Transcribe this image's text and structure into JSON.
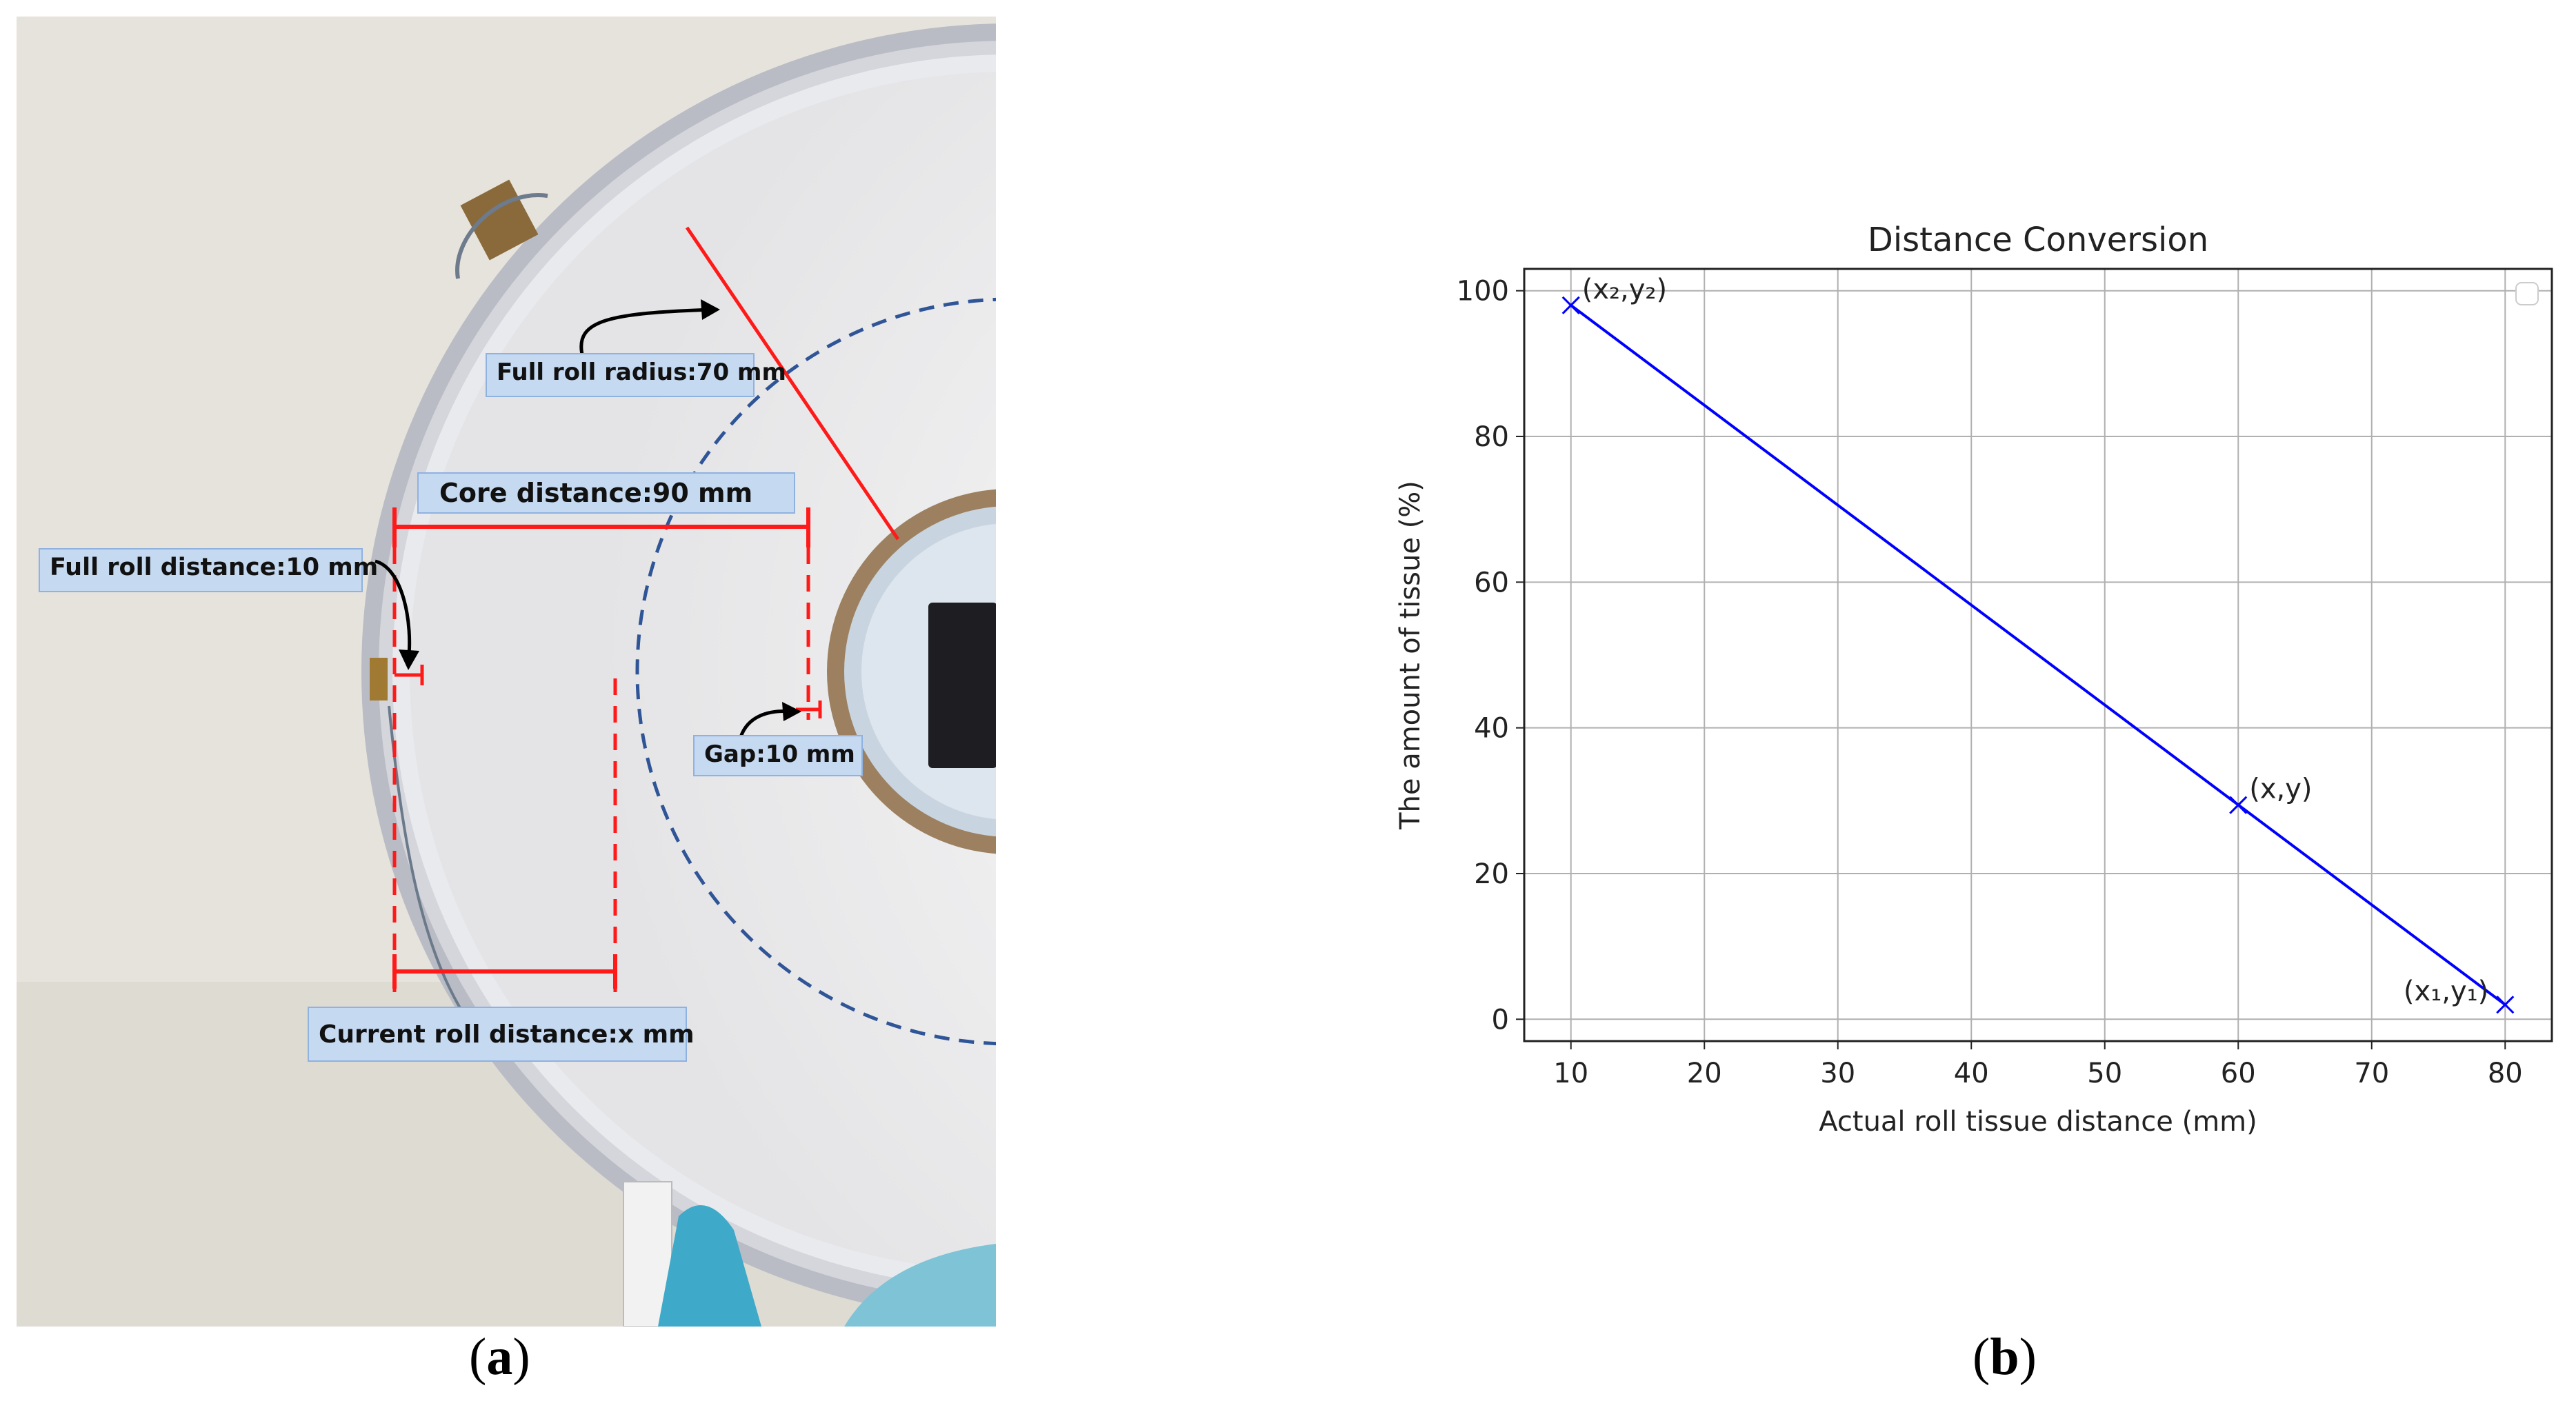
{
  "panel_a": {
    "caption_open": "(",
    "caption_letter": "a",
    "caption_close": ")",
    "labels": {
      "full_roll_radius": "Full roll radius:70 mm",
      "core_distance": "Core distance:90 mm",
      "full_roll_distance": "Full roll distance:10 mm",
      "gap": "Gap:10 mm",
      "current_roll_distance": "Current roll distance:x mm"
    }
  },
  "panel_b": {
    "caption_open": "(",
    "caption_letter": "b",
    "caption_close": ")"
  },
  "chart_data": {
    "type": "line",
    "title": "Distance Conversion",
    "xlabel": "Actual roll tissue distance (mm)",
    "ylabel": "The amount of tissue (%)",
    "xlim": [
      6.5,
      83.5
    ],
    "ylim": [
      -3,
      103
    ],
    "xticks": [
      10,
      20,
      30,
      40,
      50,
      60,
      70,
      80
    ],
    "yticks": [
      0,
      20,
      40,
      60,
      80,
      100
    ],
    "grid": true,
    "legend": "top-right (empty)",
    "line_color": "#0000ff",
    "series": [
      {
        "x": [
          10,
          80
        ],
        "y": [
          98,
          2
        ]
      }
    ],
    "markers": [
      {
        "x": 10,
        "y": 98,
        "label": "(x₂,y₂)"
      },
      {
        "x": 60,
        "y": 29.4,
        "label": "(x,y)"
      },
      {
        "x": 80,
        "y": 2,
        "label": "(x₁,y₁)"
      }
    ]
  },
  "colors": {
    "wall": "#e7e4dd",
    "roll": "#f3f3f3",
    "measure_red": "#ff1a1a",
    "dash_blue": "#2f5597",
    "label_bg": "#c5d9f1"
  }
}
